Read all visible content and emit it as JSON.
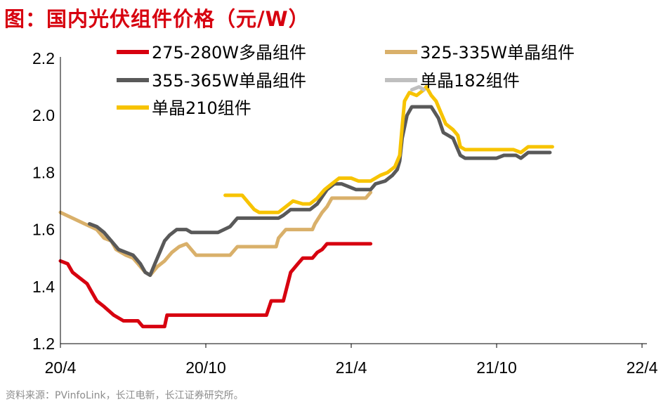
{
  "title": "图：国内光伏组件价格（元/W）",
  "source": "资料来源：PVinfoLink，长江电新，长江证券研究所。",
  "chart_data": {
    "type": "line",
    "title": "图：国内光伏组件价格（元/W）",
    "xlabel": "",
    "ylabel": "",
    "ylim": [
      1.2,
      2.2
    ],
    "yticks": [
      "1.2",
      "1.4",
      "1.6",
      "1.8",
      "2.0",
      "2.2"
    ],
    "xticks": [
      "20/4",
      "20/10",
      "21/4",
      "21/10",
      "22/4"
    ],
    "grid": false,
    "legend_position": "top",
    "series": [
      {
        "name": "275-280W多晶组件",
        "color": "#d7000f",
        "points": [
          [
            0,
            1.49
          ],
          [
            0.3,
            1.48
          ],
          [
            0.5,
            1.45
          ],
          [
            0.8,
            1.43
          ],
          [
            1.1,
            1.41
          ],
          [
            1.3,
            1.38
          ],
          [
            1.5,
            1.35
          ],
          [
            1.8,
            1.33
          ],
          [
            2.2,
            1.3
          ],
          [
            2.6,
            1.28
          ],
          [
            3.2,
            1.28
          ],
          [
            3.4,
            1.26
          ],
          [
            4.0,
            1.26
          ],
          [
            4.3,
            1.26
          ],
          [
            4.4,
            1.3
          ],
          [
            4.6,
            1.3
          ],
          [
            5.5,
            1.3
          ],
          [
            6.5,
            1.3
          ],
          [
            7.5,
            1.3
          ],
          [
            8.0,
            1.3
          ],
          [
            8.5,
            1.3
          ],
          [
            8.7,
            1.35
          ],
          [
            9.0,
            1.35
          ],
          [
            9.2,
            1.35
          ],
          [
            9.5,
            1.45
          ],
          [
            9.8,
            1.48
          ],
          [
            10.0,
            1.5
          ],
          [
            10.4,
            1.5
          ],
          [
            10.6,
            1.52
          ],
          [
            10.8,
            1.53
          ],
          [
            11.0,
            1.55
          ],
          [
            11.3,
            1.55
          ],
          [
            12.0,
            1.55
          ],
          [
            12.8,
            1.55
          ]
        ]
      },
      {
        "name": "325-335W单晶组件",
        "color": "#d9b06a",
        "points": [
          [
            0,
            1.66
          ],
          [
            0.5,
            1.64
          ],
          [
            1.0,
            1.62
          ],
          [
            1.5,
            1.6
          ],
          [
            1.8,
            1.57
          ],
          [
            2.1,
            1.56
          ],
          [
            2.3,
            1.53
          ],
          [
            2.7,
            1.51
          ],
          [
            3.0,
            1.5
          ],
          [
            3.2,
            1.48
          ],
          [
            3.5,
            1.45
          ],
          [
            3.7,
            1.44
          ],
          [
            4.0,
            1.47
          ],
          [
            4.3,
            1.49
          ],
          [
            4.6,
            1.52
          ],
          [
            4.9,
            1.54
          ],
          [
            5.2,
            1.55
          ],
          [
            5.4,
            1.53
          ],
          [
            5.6,
            1.51
          ],
          [
            5.8,
            1.51
          ],
          [
            6.3,
            1.51
          ],
          [
            6.8,
            1.51
          ],
          [
            7.0,
            1.51
          ],
          [
            7.3,
            1.54
          ],
          [
            7.8,
            1.54
          ],
          [
            8.5,
            1.54
          ],
          [
            8.9,
            1.54
          ],
          [
            9.0,
            1.57
          ],
          [
            9.3,
            1.6
          ],
          [
            9.7,
            1.6
          ],
          [
            10.0,
            1.6
          ],
          [
            10.4,
            1.6
          ],
          [
            10.5,
            1.62
          ],
          [
            10.8,
            1.66
          ],
          [
            11.0,
            1.68
          ],
          [
            11.2,
            1.71
          ],
          [
            11.5,
            1.71
          ],
          [
            12.0,
            1.71
          ],
          [
            12.5,
            1.71
          ],
          [
            12.6,
            1.71
          ],
          [
            12.8,
            1.73
          ]
        ]
      },
      {
        "name": "355-365W单晶组件",
        "color": "#595959",
        "points": [
          [
            1.2,
            1.62
          ],
          [
            1.5,
            1.61
          ],
          [
            1.8,
            1.59
          ],
          [
            2.1,
            1.56
          ],
          [
            2.4,
            1.53
          ],
          [
            2.7,
            1.52
          ],
          [
            3.0,
            1.51
          ],
          [
            3.3,
            1.48
          ],
          [
            3.5,
            1.45
          ],
          [
            3.7,
            1.44
          ],
          [
            3.9,
            1.48
          ],
          [
            4.1,
            1.52
          ],
          [
            4.3,
            1.56
          ],
          [
            4.5,
            1.58
          ],
          [
            4.8,
            1.6
          ],
          [
            5.0,
            1.6
          ],
          [
            5.2,
            1.6
          ],
          [
            5.4,
            1.59
          ],
          [
            6.0,
            1.59
          ],
          [
            6.5,
            1.59
          ],
          [
            7.0,
            1.61
          ],
          [
            7.3,
            1.64
          ],
          [
            7.6,
            1.64
          ],
          [
            8.5,
            1.64
          ],
          [
            9.0,
            1.64
          ],
          [
            9.2,
            1.65
          ],
          [
            9.5,
            1.67
          ],
          [
            10.0,
            1.67
          ],
          [
            10.3,
            1.67
          ],
          [
            10.6,
            1.69
          ],
          [
            11.0,
            1.74
          ],
          [
            11.3,
            1.76
          ],
          [
            11.6,
            1.76
          ],
          [
            11.9,
            1.75
          ],
          [
            12.2,
            1.74
          ],
          [
            12.8,
            1.74
          ],
          [
            13.0,
            1.76
          ],
          [
            13.4,
            1.77
          ],
          [
            13.7,
            1.79
          ],
          [
            13.9,
            1.81
          ],
          [
            14.0,
            1.84
          ],
          [
            14.1,
            1.92
          ],
          [
            14.3,
            2.0
          ],
          [
            14.5,
            2.03
          ],
          [
            15.0,
            2.03
          ],
          [
            15.3,
            2.03
          ],
          [
            15.6,
            1.99
          ],
          [
            15.8,
            1.94
          ],
          [
            16.2,
            1.92
          ],
          [
            16.5,
            1.86
          ],
          [
            16.7,
            1.85
          ],
          [
            17.2,
            1.85
          ],
          [
            17.6,
            1.85
          ],
          [
            18.0,
            1.85
          ],
          [
            18.3,
            1.86
          ],
          [
            18.8,
            1.86
          ],
          [
            19.0,
            1.85
          ],
          [
            19.3,
            1.87
          ],
          [
            19.8,
            1.87
          ],
          [
            20.2,
            1.87
          ]
        ]
      },
      {
        "name": "单晶182组件",
        "color": "#bfbfbf",
        "points": [
          [
            14.5,
            2.09
          ],
          [
            14.8,
            2.1
          ],
          [
            15.0,
            2.09
          ]
        ]
      },
      {
        "name": "单晶210组件",
        "color": "#f7c300",
        "points": [
          [
            6.8,
            1.72
          ],
          [
            7.5,
            1.72
          ],
          [
            7.8,
            1.69
          ],
          [
            8.0,
            1.67
          ],
          [
            8.2,
            1.66
          ],
          [
            8.6,
            1.66
          ],
          [
            9.0,
            1.66
          ],
          [
            9.3,
            1.68
          ],
          [
            9.6,
            1.7
          ],
          [
            10.0,
            1.69
          ],
          [
            10.3,
            1.69
          ],
          [
            10.6,
            1.71
          ],
          [
            10.9,
            1.74
          ],
          [
            11.2,
            1.76
          ],
          [
            11.5,
            1.78
          ],
          [
            12.0,
            1.78
          ],
          [
            12.3,
            1.77
          ],
          [
            12.8,
            1.77
          ],
          [
            13.2,
            1.79
          ],
          [
            13.5,
            1.8
          ],
          [
            13.8,
            1.82
          ],
          [
            14.0,
            1.86
          ],
          [
            14.1,
            1.96
          ],
          [
            14.2,
            2.05
          ],
          [
            14.4,
            2.08
          ],
          [
            14.7,
            2.07
          ],
          [
            15.0,
            2.09
          ],
          [
            15.1,
            2.1
          ],
          [
            15.3,
            2.07
          ],
          [
            15.5,
            2.05
          ],
          [
            15.7,
            2.01
          ],
          [
            15.9,
            1.97
          ],
          [
            16.2,
            1.95
          ],
          [
            16.4,
            1.93
          ],
          [
            16.5,
            1.89
          ],
          [
            16.7,
            1.88
          ],
          [
            17.2,
            1.88
          ],
          [
            17.7,
            1.88
          ],
          [
            18.3,
            1.88
          ],
          [
            18.7,
            1.88
          ],
          [
            19.0,
            1.87
          ],
          [
            19.3,
            1.89
          ],
          [
            19.8,
            1.89
          ],
          [
            20.3,
            1.89
          ]
        ]
      }
    ]
  }
}
